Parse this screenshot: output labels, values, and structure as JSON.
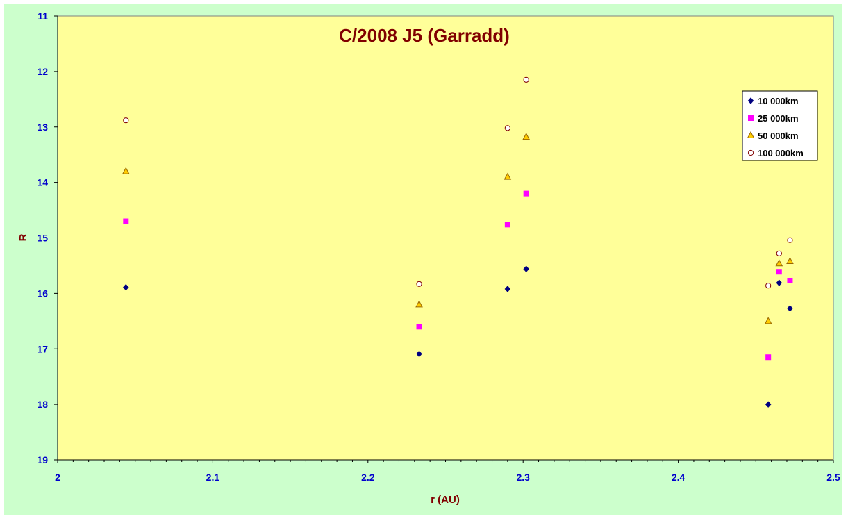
{
  "chart_data": {
    "type": "scatter",
    "title": "C/2008 J5 (Garradd)",
    "xlabel": "r (AU)",
    "ylabel": "R",
    "xlim": [
      2,
      2.5
    ],
    "ylim": [
      11,
      19
    ],
    "y_inverted": true,
    "x_ticks": [
      "2",
      "2.1",
      "2.2",
      "2.3",
      "2.4",
      "2.5"
    ],
    "y_ticks": [
      "11",
      "12",
      "13",
      "14",
      "15",
      "16",
      "17",
      "18",
      "19"
    ],
    "legend_position": "top-right",
    "colors": {
      "plot_background": "#ffff99",
      "frame_background": "#ccffcc",
      "title": "#800000",
      "tick_labels": "#0000cc"
    },
    "series": [
      {
        "name": "10 000km",
        "marker": "diamond",
        "color": "#000080",
        "points": [
          [
            2.044,
            15.89
          ],
          [
            2.233,
            17.09
          ],
          [
            2.29,
            15.92
          ],
          [
            2.302,
            15.56
          ],
          [
            2.458,
            18.0
          ],
          [
            2.465,
            15.81
          ],
          [
            2.472,
            16.27
          ]
        ]
      },
      {
        "name": "25 000km",
        "marker": "square",
        "color": "#ff00ff",
        "points": [
          [
            2.044,
            14.7
          ],
          [
            2.233,
            16.6
          ],
          [
            2.29,
            14.76
          ],
          [
            2.302,
            14.2
          ],
          [
            2.458,
            17.15
          ],
          [
            2.465,
            15.61
          ],
          [
            2.472,
            15.77
          ]
        ]
      },
      {
        "name": "50 000km",
        "marker": "triangle",
        "color": "#ffcc00",
        "points": [
          [
            2.044,
            13.8
          ],
          [
            2.233,
            16.2
          ],
          [
            2.29,
            13.9
          ],
          [
            2.302,
            13.18
          ],
          [
            2.458,
            16.5
          ],
          [
            2.465,
            15.46
          ],
          [
            2.472,
            15.42
          ]
        ]
      },
      {
        "name": "100 000km",
        "marker": "circle",
        "color": "#800000",
        "points": [
          [
            2.044,
            12.88
          ],
          [
            2.233,
            15.83
          ],
          [
            2.29,
            13.02
          ],
          [
            2.302,
            12.15
          ],
          [
            2.458,
            15.86
          ],
          [
            2.465,
            15.28
          ],
          [
            2.472,
            15.04
          ]
        ]
      }
    ]
  }
}
